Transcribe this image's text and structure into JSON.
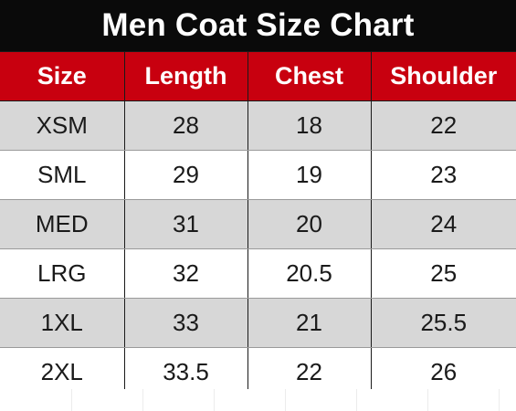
{
  "title": "Men Coat Size Chart",
  "colors": {
    "title_background": "#0a0a0a",
    "header_background": "#c8000f",
    "shaded_row": "#d7d7d7",
    "plain_row": "#ffffff"
  },
  "table": {
    "headers": [
      "Size",
      "Length",
      "Chest",
      "Shoulder"
    ],
    "rows": [
      [
        "XSM",
        "28",
        "18",
        "22"
      ],
      [
        "SML",
        "29",
        "19",
        "23"
      ],
      [
        "MED",
        "31",
        "20",
        "24"
      ],
      [
        "LRG",
        "32",
        "20.5",
        "25"
      ],
      [
        "1XL",
        "33",
        "21",
        "25.5"
      ],
      [
        "2XL",
        "33.5",
        "22",
        "26"
      ]
    ]
  }
}
